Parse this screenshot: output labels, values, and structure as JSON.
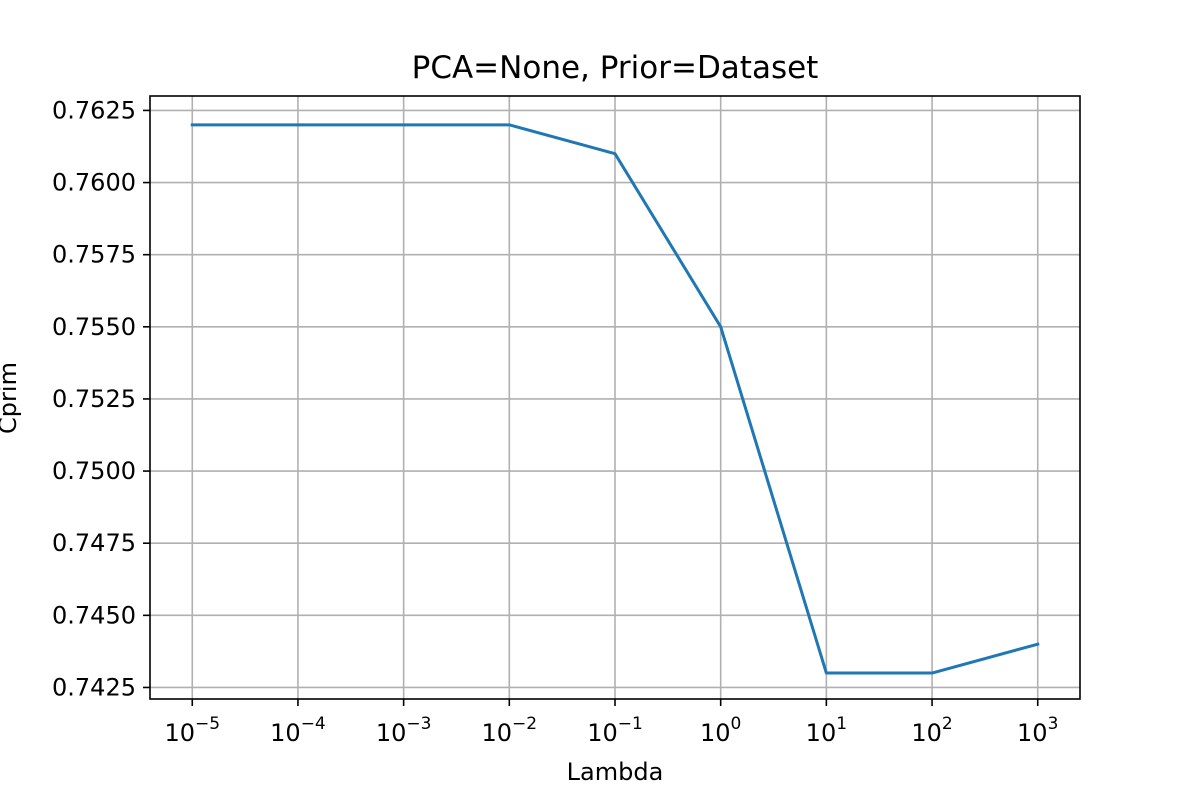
{
  "chart_data": {
    "type": "line",
    "title": "PCA=None, Prior=Dataset",
    "xlabel": "Lambda",
    "ylabel": "Cprim",
    "x_scale": "log",
    "x": [
      1e-05,
      0.0001,
      0.001,
      0.01,
      0.1,
      1,
      10,
      100,
      1000
    ],
    "x_tick_labels": [
      {
        "base": "10",
        "exp": "−5"
      },
      {
        "base": "10",
        "exp": "−4"
      },
      {
        "base": "10",
        "exp": "−3"
      },
      {
        "base": "10",
        "exp": "−2"
      },
      {
        "base": "10",
        "exp": "−1"
      },
      {
        "base": "10",
        "exp": "0"
      },
      {
        "base": "10",
        "exp": "1"
      },
      {
        "base": "10",
        "exp": "2"
      },
      {
        "base": "10",
        "exp": "3"
      }
    ],
    "y_ticks": [
      "0.7425",
      "0.7450",
      "0.7475",
      "0.7500",
      "0.7525",
      "0.7550",
      "0.7575",
      "0.7600",
      "0.7625"
    ],
    "ylim": [
      0.7421,
      0.763
    ],
    "series": [
      {
        "values": [
          0.762,
          0.762,
          0.762,
          0.762,
          0.761,
          0.755,
          0.743,
          0.743,
          0.744
        ],
        "color": "#1f77b4"
      }
    ],
    "grid": true,
    "legend": "none"
  }
}
